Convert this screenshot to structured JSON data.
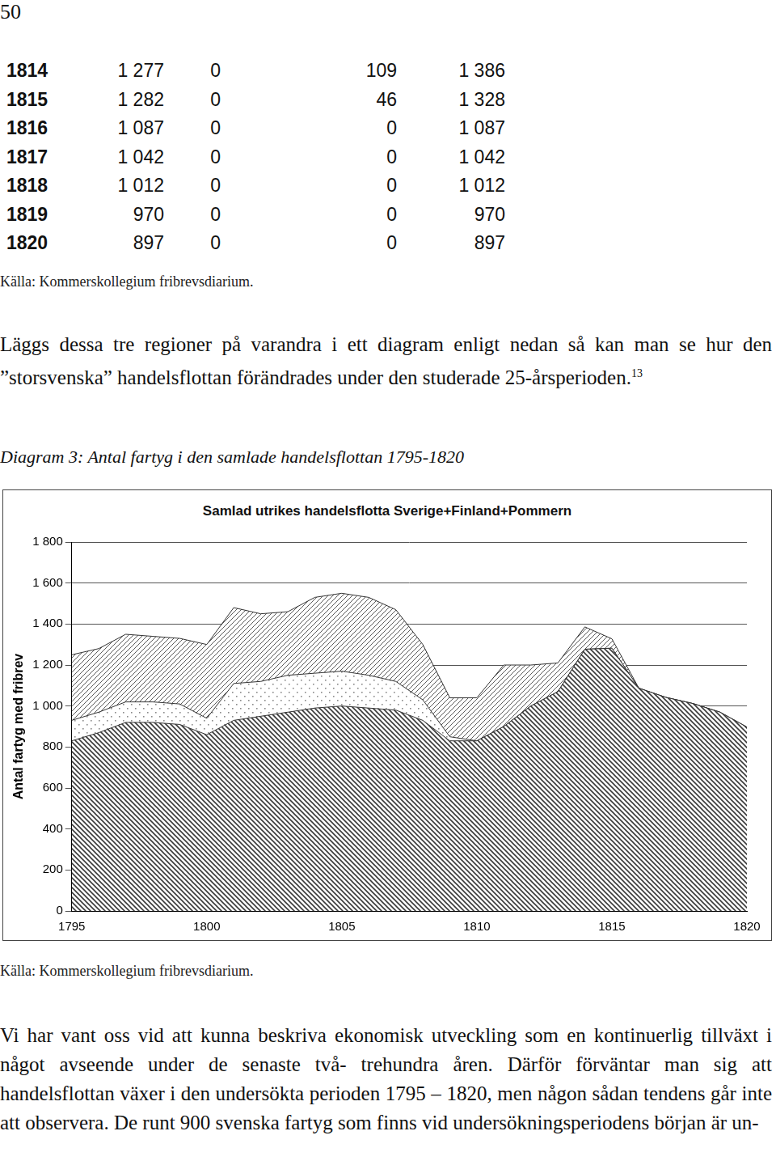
{
  "page_number": "50",
  "table": {
    "rows": [
      [
        "1814",
        "1 277",
        "0",
        "109",
        "1 386"
      ],
      [
        "1815",
        "1 282",
        "0",
        "46",
        "1 328"
      ],
      [
        "1816",
        "1 087",
        "0",
        "0",
        "1 087"
      ],
      [
        "1817",
        "1 042",
        "0",
        "0",
        "1 042"
      ],
      [
        "1818",
        "1 012",
        "0",
        "0",
        "1 012"
      ],
      [
        "1819",
        "970",
        "0",
        "0",
        "970"
      ],
      [
        "1820",
        "897",
        "0",
        "0",
        "897"
      ]
    ]
  },
  "table_source": "Källa: Kommerskollegium fribrevsdiarium.",
  "paragraph1": "Läggs dessa tre regioner på varandra i ett diagram enligt nedan så kan man se hur den ”storsvenska” handelsflottan förändrades under den studerade 25-årsperioden.",
  "paragraph1_note": "13",
  "caption": "Diagram 3: Antal fartyg i den samlade handelsflottan 1795-1820",
  "chart_data": {
    "type": "area",
    "title": "Samlad utrikes handelsflotta Sverige+Finland+Pommern",
    "y_label": "Antal fartyg med fribrev",
    "stacked": true,
    "grid": true,
    "x": [
      1795,
      1796,
      1797,
      1798,
      1799,
      1800,
      1801,
      1802,
      1803,
      1804,
      1805,
      1806,
      1807,
      1808,
      1809,
      1810,
      1811,
      1812,
      1813,
      1814,
      1815,
      1816,
      1817,
      1818,
      1819,
      1820
    ],
    "xlim": [
      1795,
      1820
    ],
    "xticks": [
      1795,
      1800,
      1805,
      1810,
      1815,
      1820
    ],
    "ylim": [
      0,
      1800
    ],
    "yticks": [
      0,
      200,
      400,
      600,
      800,
      {
        "value": 1000,
        "label": "1 000"
      },
      {
        "value": 1200,
        "label": "1 200"
      },
      {
        "value": 1400,
        "label": "1 400"
      },
      {
        "value": 1600,
        "label": "1 600"
      },
      {
        "value": 1800,
        "label": "1 800"
      }
    ],
    "series": [
      {
        "color": "#3a3a3a",
        "values": [
          830,
          870,
          920,
          920,
          910,
          860,
          930,
          950,
          970,
          990,
          1000,
          990,
          980,
          930,
          830,
          830,
          900,
          1000,
          1070,
          1277,
          1282,
          1087,
          1042,
          1012,
          970,
          897
        ]
      },
      {
        "color": "#8a8a8a",
        "values": [
          100,
          100,
          100,
          100,
          100,
          80,
          180,
          170,
          180,
          170,
          170,
          160,
          140,
          100,
          20,
          0,
          0,
          0,
          0,
          0,
          0,
          0,
          0,
          0,
          0,
          0
        ]
      },
      {
        "color": "#5a5a5a",
        "values": [
          320,
          310,
          330,
          320,
          320,
          360,
          370,
          330,
          310,
          370,
          380,
          380,
          350,
          270,
          190,
          210,
          300,
          200,
          140,
          109,
          46,
          0,
          0,
          0,
          0,
          0
        ]
      }
    ]
  },
  "chart_source": "Källa: Kommerskollegium fribrevsdiarium.",
  "paragraph2": "Vi har vant oss vid att kunna beskriva ekonomisk utveckling som en kontinuerlig tillväxt i något avseende under de senaste två- trehundra åren. Därför förväntar man sig att handelsflottan växer i den undersökta perioden 1795 – 1820, men någon sådan tendens går inte att observera. De runt 900 svenska fartyg som finns vid undersökningsperiodens början är un-"
}
